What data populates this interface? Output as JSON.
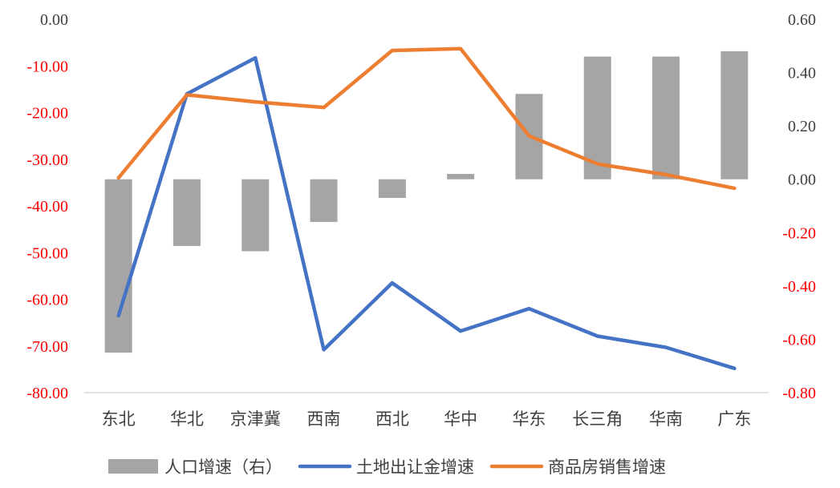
{
  "chart_data": {
    "type": "bar+line",
    "title": "",
    "categories": [
      "东北",
      "华北",
      "京津冀",
      "西南",
      "西北",
      "华中",
      "华东",
      "长三角",
      "华南",
      "广东"
    ],
    "series": [
      {
        "name": "人口增速（右）",
        "kind": "bar",
        "axis": "right",
        "color": "#a5a5a5",
        "values": [
          -0.65,
          -0.25,
          -0.27,
          -0.16,
          -0.07,
          0.02,
          0.32,
          0.46,
          0.46,
          0.48
        ]
      },
      {
        "name": "土地出让金增速",
        "kind": "line",
        "axis": "left",
        "color": "#4472c4",
        "values": [
          -63.5,
          -16.0,
          -8.3,
          -70.8,
          -56.5,
          -66.8,
          -62.0,
          -67.9,
          -70.3,
          -74.8
        ]
      },
      {
        "name": "商品房销售增速",
        "kind": "line",
        "axis": "left",
        "color": "#ed7d31",
        "values": [
          -34.0,
          -16.2,
          -17.7,
          -18.9,
          -6.7,
          -6.3,
          -25.0,
          -31.0,
          -33.3,
          -36.2
        ]
      }
    ],
    "left_axis": {
      "ylim": [
        -80,
        0
      ],
      "ticks": [
        "0.00",
        "-10.00",
        "-20.00",
        "-30.00",
        "-40.00",
        "-50.00",
        "-60.00",
        "-70.00",
        "-80.00"
      ],
      "tick_values": [
        0,
        -10,
        -20,
        -30,
        -40,
        -50,
        -60,
        -70,
        -80
      ]
    },
    "right_axis": {
      "ylim": [
        -0.8,
        0.6
      ],
      "ticks": [
        "0.60",
        "0.40",
        "0.20",
        "0.00",
        "-0.20",
        "-0.40",
        "-0.60",
        "-0.80"
      ],
      "tick_values": [
        0.6,
        0.4,
        0.2,
        0,
        -0.2,
        -0.4,
        -0.6,
        -0.8
      ]
    },
    "colors": {
      "positive_tick": "#404040",
      "negative_tick": "#ff0000",
      "axis_line": "#d9d9d9"
    },
    "grid": false,
    "legend": "bottom"
  }
}
